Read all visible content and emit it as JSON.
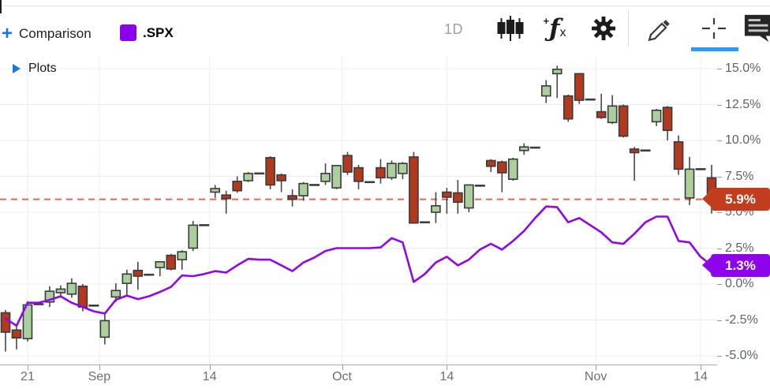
{
  "toolbar": {
    "comparison": {
      "add_label": "Comparison",
      "symbol": ".SPX",
      "swatch_color": "#8a00e8",
      "plus": "+"
    },
    "interval_label": "1D",
    "fx": {
      "plus": "+",
      "f": "ƒ",
      "x": "x"
    },
    "active_tool": "crosshair",
    "active_underline_color": "#2b9af3"
  },
  "plots_panel": {
    "label": "Plots"
  },
  "chart_data": {
    "type": "candlestick_with_comparison_line",
    "comparison_symbol": ".SPX",
    "y_axis": {
      "unit": "%",
      "min": -5,
      "max": 15,
      "step": 2.5,
      "ticks": [
        {
          "label": "15.0%",
          "value": 15.0
        },
        {
          "label": "12.5%",
          "value": 12.5
        },
        {
          "label": "10.0%",
          "value": 10.0
        },
        {
          "label": "7.5%",
          "value": 7.5
        },
        {
          "label": "5.0%",
          "value": 5.0
        },
        {
          "label": "2.5%",
          "value": 2.5
        },
        {
          "label": "0.0%",
          "value": 0.0
        },
        {
          "label": "-2.5%",
          "value": -2.5
        },
        {
          "label": "-5.0%",
          "value": -5.0
        }
      ]
    },
    "x_axis": {
      "ticks": [
        {
          "label": "21",
          "slot": 2
        },
        {
          "label": "Sep",
          "slot": 8.5
        },
        {
          "label": "14",
          "slot": 18.5
        },
        {
          "label": "Oct",
          "slot": 30.5
        },
        {
          "label": "14",
          "slot": 40
        },
        {
          "label": "Nov",
          "slot": 53.5
        },
        {
          "label": "14",
          "slot": 63
        }
      ]
    },
    "candles": [
      [
        -2.0,
        -1.8,
        -4.7,
        -3.35
      ],
      [
        -3.2,
        -2.95,
        -4.55,
        -3.75
      ],
      [
        -3.8,
        -1.2,
        -4.0,
        -1.45
      ],
      [
        -1.4,
        -1.4,
        -1.4,
        -1.4
      ],
      [
        -1.25,
        -0.15,
        -1.6,
        -0.5
      ],
      [
        -0.6,
        -0.1,
        -0.9,
        -0.35
      ],
      [
        -0.7,
        0.4,
        -0.95,
        0.05
      ],
      [
        -0.15,
        0.0,
        -1.9,
        -1.6
      ],
      [
        -1.5,
        -1.5,
        -1.5,
        -1.5
      ],
      [
        -3.7,
        -2.1,
        -4.2,
        -2.55
      ],
      [
        -0.9,
        0.05,
        -1.25,
        -0.45
      ],
      [
        0.05,
        1.0,
        -0.9,
        0.7
      ],
      [
        0.95,
        1.55,
        -0.4,
        0.55
      ],
      [
        0.65,
        0.65,
        0.65,
        0.65
      ],
      [
        1.15,
        1.6,
        0.55,
        1.55
      ],
      [
        2.0,
        2.1,
        0.95,
        1.05
      ],
      [
        1.7,
        2.35,
        1.0,
        2.25
      ],
      [
        2.5,
        4.4,
        2.3,
        4.1
      ],
      [
        4.1,
        4.1,
        4.1,
        4.1
      ],
      [
        6.4,
        6.9,
        6.0,
        6.65
      ],
      [
        6.2,
        6.5,
        4.9,
        5.95
      ],
      [
        7.15,
        7.5,
        6.35,
        6.5
      ],
      [
        7.2,
        7.8,
        7.1,
        7.7
      ],
      [
        7.7,
        7.7,
        7.7,
        7.7
      ],
      [
        8.8,
        8.9,
        6.6,
        6.9
      ],
      [
        7.6,
        7.7,
        6.4,
        7.2
      ],
      [
        6.15,
        6.6,
        5.4,
        5.9
      ],
      [
        6.15,
        7.1,
        5.8,
        7.0
      ],
      [
        6.9,
        6.9,
        6.9,
        6.9
      ],
      [
        7.15,
        8.4,
        6.9,
        7.7
      ],
      [
        6.7,
        8.3,
        6.6,
        8.25
      ],
      [
        8.95,
        9.2,
        7.6,
        7.8
      ],
      [
        8.1,
        8.3,
        6.6,
        7.15
      ],
      [
        7.1,
        7.1,
        7.1,
        7.1
      ],
      [
        8.1,
        8.7,
        7.0,
        7.4
      ],
      [
        7.4,
        8.6,
        7.25,
        8.4
      ],
      [
        7.7,
        8.5,
        7.3,
        8.4
      ],
      [
        8.85,
        9.2,
        4.2,
        4.25
      ],
      [
        4.3,
        4.3,
        4.3,
        4.3
      ],
      [
        5.0,
        6.4,
        4.25,
        5.45
      ],
      [
        6.4,
        6.7,
        4.9,
        6.05
      ],
      [
        6.35,
        7.25,
        4.9,
        5.7
      ],
      [
        5.3,
        6.95,
        5.0,
        6.9
      ],
      [
        6.85,
        6.85,
        6.85,
        6.85
      ],
      [
        8.6,
        8.7,
        7.8,
        8.2
      ],
      [
        8.5,
        8.6,
        6.4,
        7.75
      ],
      [
        7.3,
        8.8,
        7.2,
        8.7
      ],
      [
        9.3,
        9.8,
        9.0,
        9.55
      ],
      [
        9.5,
        9.5,
        9.5,
        9.5
      ],
      [
        13.1,
        14.2,
        12.6,
        13.8
      ],
      [
        14.65,
        15.2,
        12.95,
        14.95
      ],
      [
        13.1,
        13.2,
        11.3,
        11.5
      ],
      [
        14.65,
        14.7,
        12.55,
        12.8
      ],
      [
        12.85,
        12.85,
        12.85,
        12.85
      ],
      [
        12.0,
        13.25,
        11.5,
        11.6
      ],
      [
        11.25,
        13.15,
        11.15,
        12.4
      ],
      [
        12.4,
        12.5,
        10.2,
        10.3
      ],
      [
        9.4,
        9.55,
        7.2,
        9.15
      ],
      [
        9.3,
        9.3,
        9.3,
        9.3
      ],
      [
        11.3,
        12.2,
        11.0,
        12.1
      ],
      [
        12.3,
        12.4,
        10.0,
        10.7
      ],
      [
        9.9,
        10.35,
        7.6,
        8.0
      ],
      [
        6.0,
        8.85,
        5.5,
        8.0
      ],
      [
        8.0,
        8.0,
        8.0,
        8.0
      ],
      [
        7.4,
        8.3,
        4.9,
        5.9
      ]
    ],
    "comparison_line": [
      -2.4,
      -2.9,
      -1.3,
      -1.3,
      -1.1,
      -0.85,
      -1.3,
      -1.6,
      -1.9,
      -2.05,
      -1.1,
      -0.8,
      -1.05,
      -0.85,
      -0.55,
      -0.2,
      0.6,
      0.55,
      0.7,
      0.9,
      0.8,
      1.3,
      1.75,
      1.7,
      1.7,
      1.3,
      0.9,
      1.5,
      1.85,
      2.3,
      2.5,
      2.5,
      2.5,
      2.5,
      2.55,
      3.2,
      2.9,
      0.15,
      0.7,
      1.5,
      1.9,
      1.3,
      1.7,
      2.4,
      2.8,
      2.4,
      3.0,
      3.7,
      4.6,
      5.4,
      5.35,
      4.3,
      4.6,
      4.1,
      3.6,
      2.9,
      2.8,
      3.5,
      4.3,
      4.7,
      4.7,
      3.0,
      2.9,
      1.9,
      1.3
    ],
    "price_markers": {
      "last_price": {
        "text": "5.9%",
        "value": 5.9,
        "dashed_line": true
      },
      "comparison_price": {
        "text": "1.3%",
        "value": 1.3
      }
    },
    "colors": {
      "up_fill": "#abcf9d",
      "down_fill": "#b13a1e",
      "outline": "#3a3a3a",
      "wick": "#474743",
      "flat": "#3c3c3c",
      "line": "#9006ec",
      "dashed_line": "#e2664a",
      "grid": "#ececec",
      "axis": "#ababab",
      "label": "#5f6368",
      "badge_down": "#c23c1e",
      "badge_line": "#8d04ea"
    }
  }
}
